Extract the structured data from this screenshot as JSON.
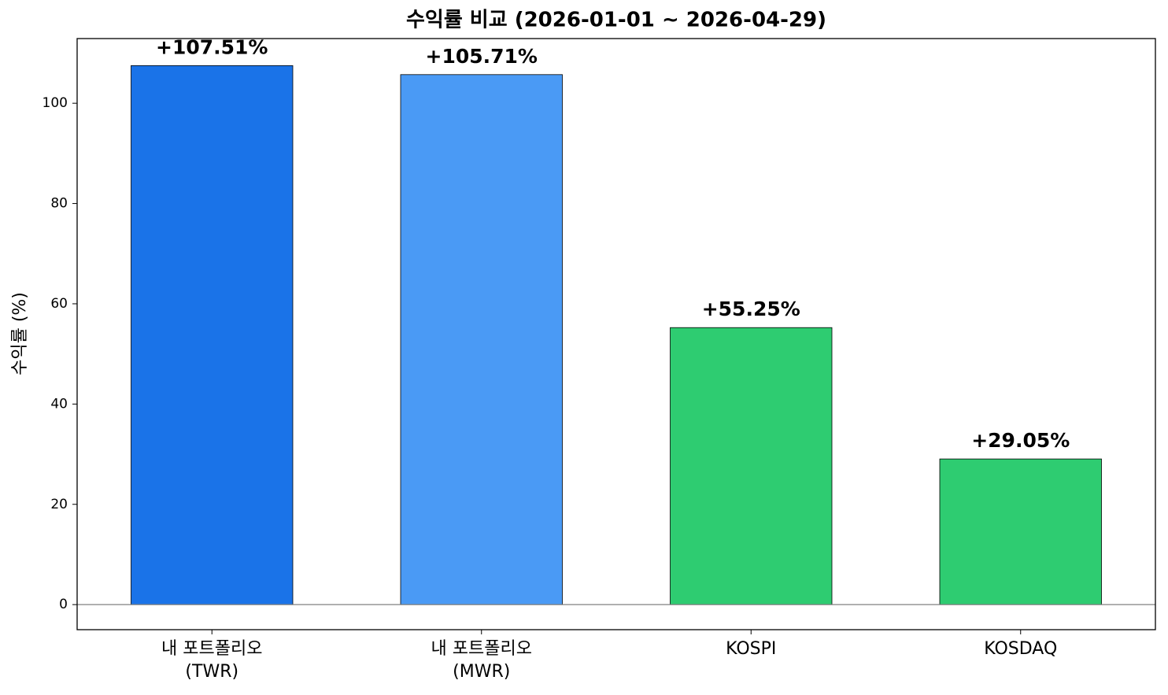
{
  "chart_data": {
    "type": "bar",
    "title": "수익률 비교 (2026-01-01 ~ 2026-04-29)",
    "ylabel": "수익률 (%)",
    "categories": [
      "내 포트폴리오\n(TWR)",
      "내 포트폴리오\n(MWR)",
      "KOSPI",
      "KOSDAQ"
    ],
    "values": [
      107.51,
      105.71,
      55.25,
      29.05
    ],
    "value_labels": [
      "+107.51%",
      "+105.71%",
      "+55.25%",
      "+29.05%"
    ],
    "colors": [
      "#1a73e8",
      "#4a9af5",
      "#2ecc71",
      "#2ecc71"
    ],
    "ylim": [
      -5,
      112.9
    ],
    "yticks": [
      0,
      20,
      40,
      60,
      80,
      100
    ],
    "grid": false
  }
}
